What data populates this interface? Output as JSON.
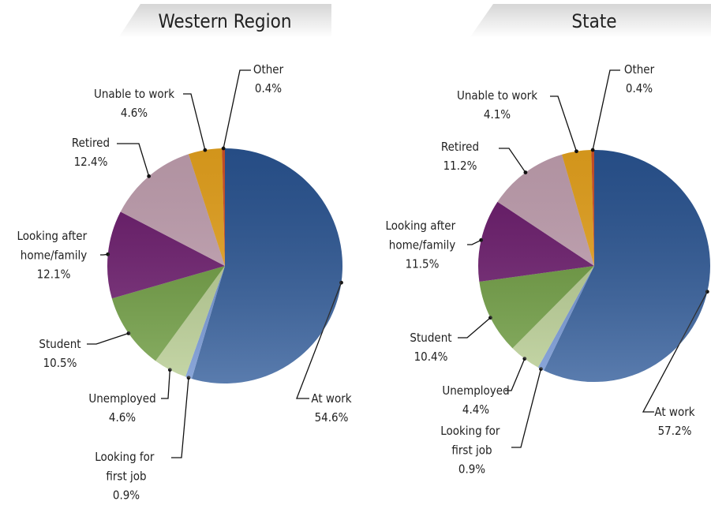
{
  "chart_data": [
    {
      "type": "pie",
      "title": "Western Region",
      "categories": [
        "At work",
        "Looking for first job",
        "Unemployed",
        "Student",
        "Looking after home/family",
        "Retired",
        "Unable to work",
        "Other"
      ],
      "values": [
        54.6,
        0.9,
        4.6,
        10.5,
        12.1,
        12.4,
        4.6,
        0.4
      ],
      "value_labels": [
        "54.6%",
        "0.9%",
        "4.6%",
        "10.5%",
        "12.1%",
        "12.4%",
        "4.6%",
        "0.4%"
      ],
      "colors": [
        "#2b5797",
        "#6b8fd0",
        "#b6cc8f",
        "#6a9a3b",
        "#6d1a6e",
        "#c9a6b7",
        "#efa91f",
        "#d9542a"
      ]
    },
    {
      "type": "pie",
      "title": "State",
      "categories": [
        "At work",
        "Looking for first job",
        "Unemployed",
        "Student",
        "Looking after home/family",
        "Retired",
        "Unable to work",
        "Other"
      ],
      "values": [
        57.2,
        0.9,
        4.4,
        10.4,
        11.5,
        11.2,
        4.1,
        0.4
      ],
      "value_labels": [
        "57.2%",
        "0.9%",
        "4.4%",
        "10.4%",
        "11.5%",
        "11.2%",
        "4.1%",
        "0.4%"
      ],
      "colors": [
        "#2b5797",
        "#6b8fd0",
        "#b6cc8f",
        "#6a9a3b",
        "#6d1a6e",
        "#c9a6b7",
        "#efa91f",
        "#d9542a"
      ]
    }
  ]
}
